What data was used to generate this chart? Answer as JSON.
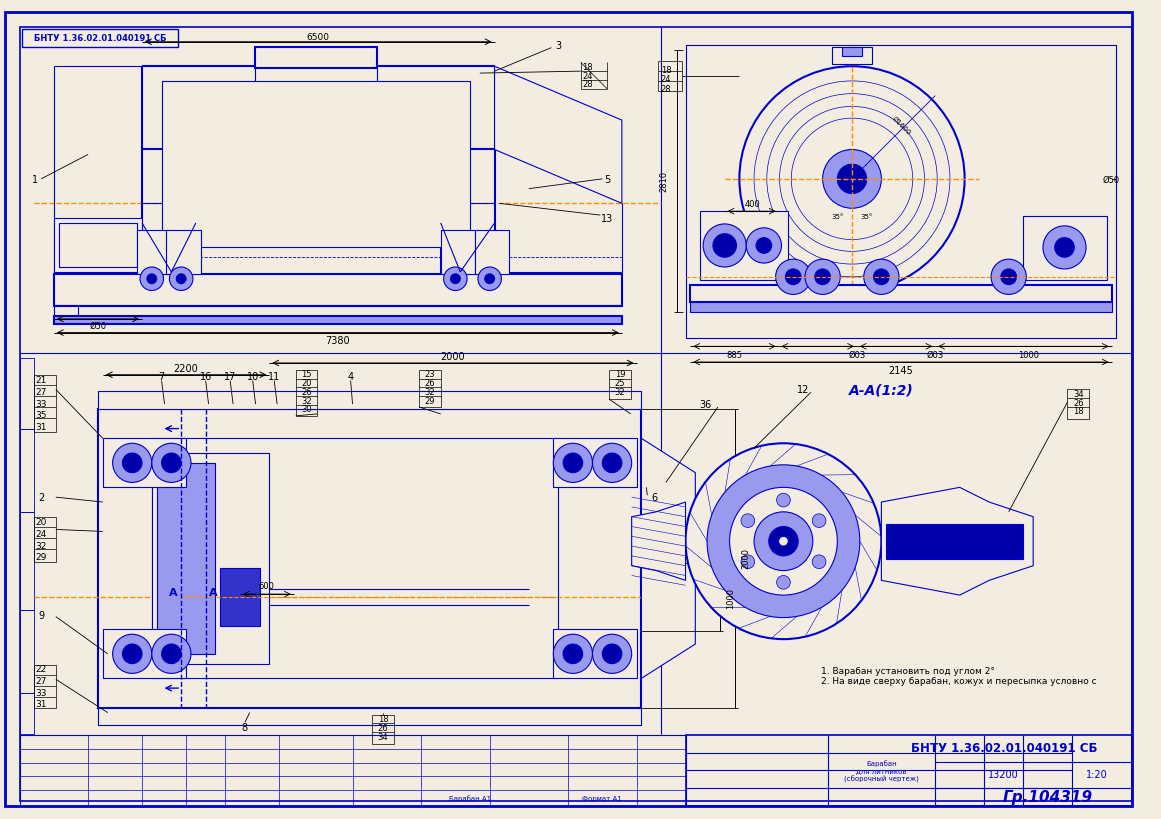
{
  "title": "БНТУ 1.36.02.01.040191 СБ",
  "doc_number": "Гр.104319",
  "scale": "1:20",
  "mass": "13200",
  "stamp_top_left": "БНТУ 1.36.02.01.040191 СБ",
  "notes": [
    "1. Варабан установить под углом 2°",
    "2. На виде сверху барабан, кожух и пересыпка условно с"
  ],
  "bg_color": "#f2ede0",
  "line_color": "#0000cc",
  "dim_color": "#000000",
  "orange_line_color": "#ff8c00",
  "border_color": "#0000cc",
  "text_color": "#000000",
  "blue_text": "#0000cc",
  "dark_fill": "#0000aa",
  "medium_fill": "#3333cc",
  "light_fill": "#9999ee"
}
